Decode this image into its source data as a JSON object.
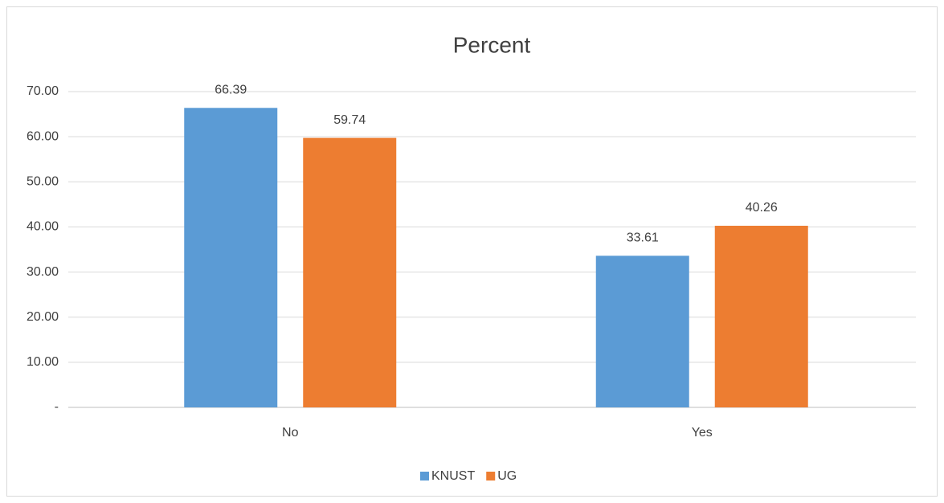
{
  "chart_data": {
    "type": "bar",
    "title": "Percent",
    "categories": [
      "No",
      "Yes"
    ],
    "series": [
      {
        "name": "KNUST",
        "color": "#5b9bd5",
        "values": [
          66.39,
          33.61
        ]
      },
      {
        "name": "UG",
        "color": "#ed7d31",
        "values": [
          59.74,
          40.26
        ]
      }
    ],
    "ylim": [
      0,
      70
    ],
    "yticks": [
      {
        "value": 0,
        "label": "-"
      },
      {
        "value": 10,
        "label": "10.00"
      },
      {
        "value": 20,
        "label": "20.00"
      },
      {
        "value": 30,
        "label": "30.00"
      },
      {
        "value": 40,
        "label": "40.00"
      },
      {
        "value": 50,
        "label": "50.00"
      },
      {
        "value": 60,
        "label": "60.00"
      },
      {
        "value": 70,
        "label": "70.00"
      }
    ],
    "grid": true,
    "legend": "bottom"
  }
}
